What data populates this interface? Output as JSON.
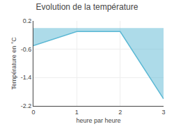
{
  "chart_data": {
    "type": "area",
    "title": "Evolution de la température",
    "xlabel": "heure par heure",
    "ylabel": "Température en °C",
    "x": [
      0,
      1,
      2,
      3
    ],
    "values": [
      -0.5,
      -0.1,
      -0.1,
      -2.0
    ],
    "color": "#5bb8d4",
    "xlim": [
      0,
      3
    ],
    "ylim": [
      -2.2,
      0.2
    ],
    "xticks": [
      0,
      1,
      2,
      3
    ],
    "yticks": [
      0.2,
      -0.6,
      -1.4,
      -2.2
    ],
    "grid": true
  }
}
